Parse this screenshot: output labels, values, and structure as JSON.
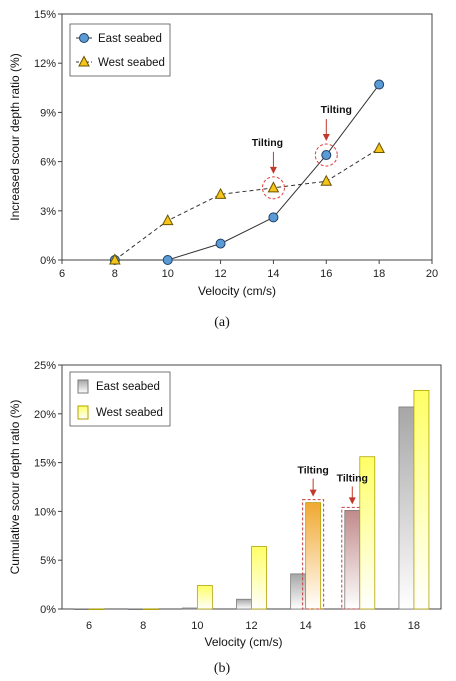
{
  "chart_data": [
    {
      "type": "line",
      "caption": "(a)",
      "xlabel": "Velocity (cm/s)",
      "ylabel": "Increased scour depth ratio (%)",
      "xlim": [
        6,
        20
      ],
      "ylim": [
        0,
        15
      ],
      "xticks": [
        "6",
        "8",
        "10",
        "12",
        "14",
        "16",
        "18",
        "20"
      ],
      "yticks": [
        "0%",
        "3%",
        "6%",
        "9%",
        "12%",
        "15%"
      ],
      "legend_position": "top-left",
      "series": [
        {
          "name": "East seabed",
          "marker": "circle",
          "line": "solid",
          "color": "#5b9bd5",
          "x": [
            8,
            10,
            12,
            14,
            16,
            18
          ],
          "y": [
            0,
            0,
            1.0,
            2.6,
            6.4,
            10.7
          ]
        },
        {
          "name": "West seabed",
          "marker": "triangle",
          "line": "dashed",
          "color": "#f5c518",
          "x": [
            8,
            10,
            12,
            14,
            16,
            18
          ],
          "y": [
            0,
            2.4,
            4.0,
            4.4,
            4.8,
            6.8
          ]
        }
      ],
      "annotations": [
        {
          "text": "Tilting",
          "x": 14,
          "y": 4.4,
          "series": "West seabed"
        },
        {
          "text": "Tilting",
          "x": 16,
          "y": 6.4,
          "series": "East seabed"
        }
      ]
    },
    {
      "type": "bar",
      "caption": "(b)",
      "xlabel": "Velocity (cm/s)",
      "ylabel": "Cumulative scour depth ratio (%)",
      "ylim": [
        0,
        25
      ],
      "categories": [
        "6",
        "8",
        "10",
        "12",
        "14",
        "16",
        "18"
      ],
      "yticks": [
        "0%",
        "5%",
        "10%",
        "15%",
        "20%",
        "25%"
      ],
      "legend_position": "top-left",
      "series": [
        {
          "name": "East seabed",
          "color": "#a6a6a6",
          "values": [
            0,
            0,
            0.1,
            1.0,
            3.6,
            10.1,
            20.7
          ]
        },
        {
          "name": "West seabed",
          "color": "#ffff66",
          "values": [
            0,
            0,
            2.4,
            6.4,
            10.9,
            15.6,
            22.4
          ]
        }
      ],
      "highlighted": [
        {
          "category": "14",
          "series": "West seabed",
          "color": "#f0a830"
        },
        {
          "category": "16",
          "series": "East seabed",
          "color": "#c08a8a"
        }
      ],
      "annotations": [
        {
          "text": "Tilting",
          "category": "14",
          "series": "West seabed"
        },
        {
          "text": "Tilting",
          "category": "16",
          "series": "East seabed"
        }
      ]
    }
  ]
}
